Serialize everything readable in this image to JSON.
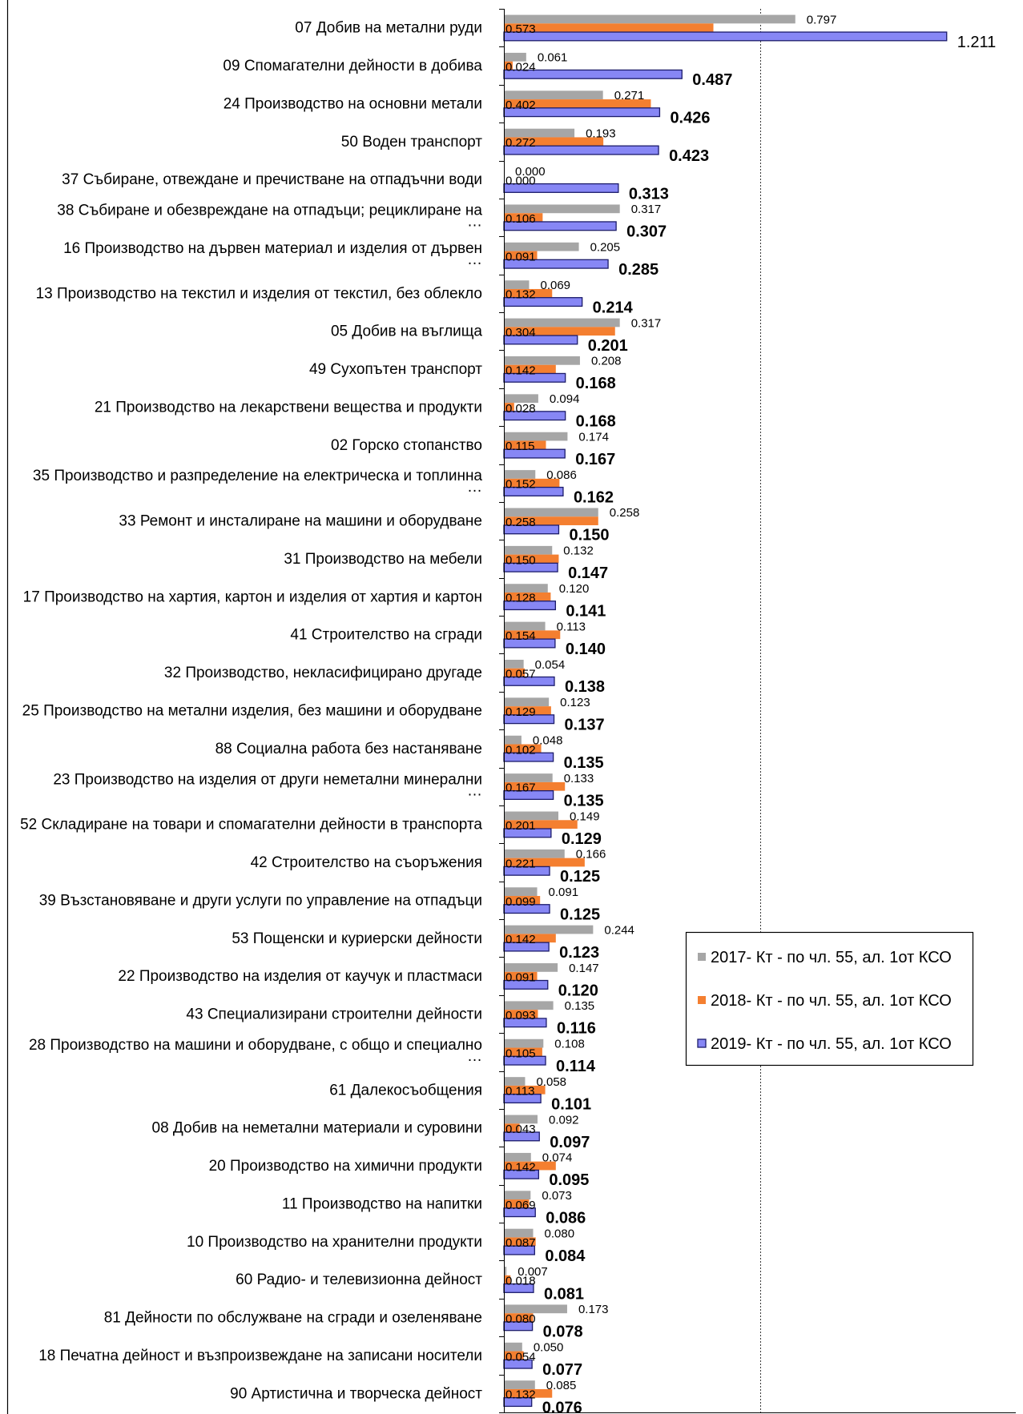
{
  "chart_data": {
    "type": "bar",
    "orientation": "horizontal",
    "categories": [
      "07 Добив на метални руди",
      "09 Спомагателни дейности в добива",
      "24 Производство на основни метали",
      "50 Воден транспорт",
      "37 Събиране, отвеждане и пречистване на отпадъчни води",
      "38 Събиране и обезвреждане на отпадъци; рециклиране на …",
      "16 Производство на дървен материал и изделия от дървен …",
      "13 Производство на текстил и изделия от текстил, без облекло",
      "05 Добив на въглища",
      "49 Сухопътен транспорт",
      "21 Производство на лекарствени вещества и продукти",
      "02 Горско стопанство",
      "35 Производство и разпределение на електрическа и топлинна …",
      "33 Ремонт и инсталиране на машини и оборудване",
      "31 Производство на мебели",
      "17 Производство на хартия, картон и изделия от хартия и картон",
      "41 Строителство на сгради",
      "32 Производство, некласифицирано другаде",
      "25 Производство на метални изделия, без машини и оборудване",
      "88 Социална работа без настаняване",
      "23 Производство на изделия от други неметални минерални …",
      "52 Складиране на товари и спомагателни дейности в транспорта",
      "42 Строителство на съоръжения",
      "39 Възстановяване и други услуги по управление на отпадъци",
      "53 Пощенски и куриерски дейности",
      "22 Производство на изделия от каучук и пластмаси",
      "43 Специализирани строителни дейности",
      "28 Производство на машини и оборудване, с общо и специално …",
      "61 Далекосъобщения",
      "08 Добив на неметални материали и суровини",
      "20 Производство на химични продукти",
      "11 Производство на напитки",
      "10 Производство на хранителни продукти",
      "60 Радио- и телевизионна дейност",
      "81 Дейности по обслужване на сгради и озеленяване",
      "18 Печатна дейност и възпроизвеждане на записани носители",
      "90 Артистична и творческа дейност"
    ],
    "series": [
      {
        "name": "2017- Кт - по чл. 55, ал. 1от КСО",
        "color": "#a6a6a6",
        "values": [
          0.797,
          0.061,
          0.271,
          0.193,
          0.0,
          0.317,
          0.205,
          0.069,
          0.317,
          0.208,
          0.094,
          0.174,
          0.086,
          0.258,
          0.132,
          0.12,
          0.113,
          0.054,
          0.123,
          0.048,
          0.133,
          0.149,
          0.166,
          0.091,
          0.244,
          0.147,
          0.135,
          0.108,
          0.058,
          0.092,
          0.074,
          0.073,
          0.08,
          0.007,
          0.173,
          0.05,
          0.085
        ]
      },
      {
        "name": "2018- Кт - по чл. 55, ал. 1от КСО",
        "color": "#f47f30",
        "values": [
          0.573,
          0.024,
          0.402,
          0.272,
          0.0,
          0.106,
          0.091,
          0.132,
          0.304,
          0.142,
          0.028,
          0.115,
          0.152,
          0.258,
          0.15,
          0.128,
          0.154,
          0.057,
          0.129,
          0.102,
          0.167,
          0.201,
          0.221,
          0.099,
          0.142,
          0.091,
          0.093,
          0.105,
          0.113,
          0.043,
          0.142,
          0.069,
          0.087,
          0.018,
          0.08,
          0.054,
          0.132
        ]
      },
      {
        "name": "2019- Кт - по чл. 55, ал. 1от КСО",
        "color": "#8787f5",
        "border_color": "#1c1c6b",
        "values": [
          1.211,
          0.487,
          0.426,
          0.423,
          0.313,
          0.307,
          0.285,
          0.214,
          0.201,
          0.168,
          0.168,
          0.167,
          0.162,
          0.15,
          0.147,
          0.141,
          0.14,
          0.138,
          0.137,
          0.135,
          0.135,
          0.129,
          0.125,
          0.125,
          0.123,
          0.12,
          0.116,
          0.114,
          0.101,
          0.097,
          0.095,
          0.086,
          0.084,
          0.081,
          0.078,
          0.077,
          0.076
        ]
      }
    ],
    "xlim": [
      0,
      1.4
    ],
    "x_major_unit": 0.7,
    "grid": "vertical dotted",
    "legend": "right"
  }
}
